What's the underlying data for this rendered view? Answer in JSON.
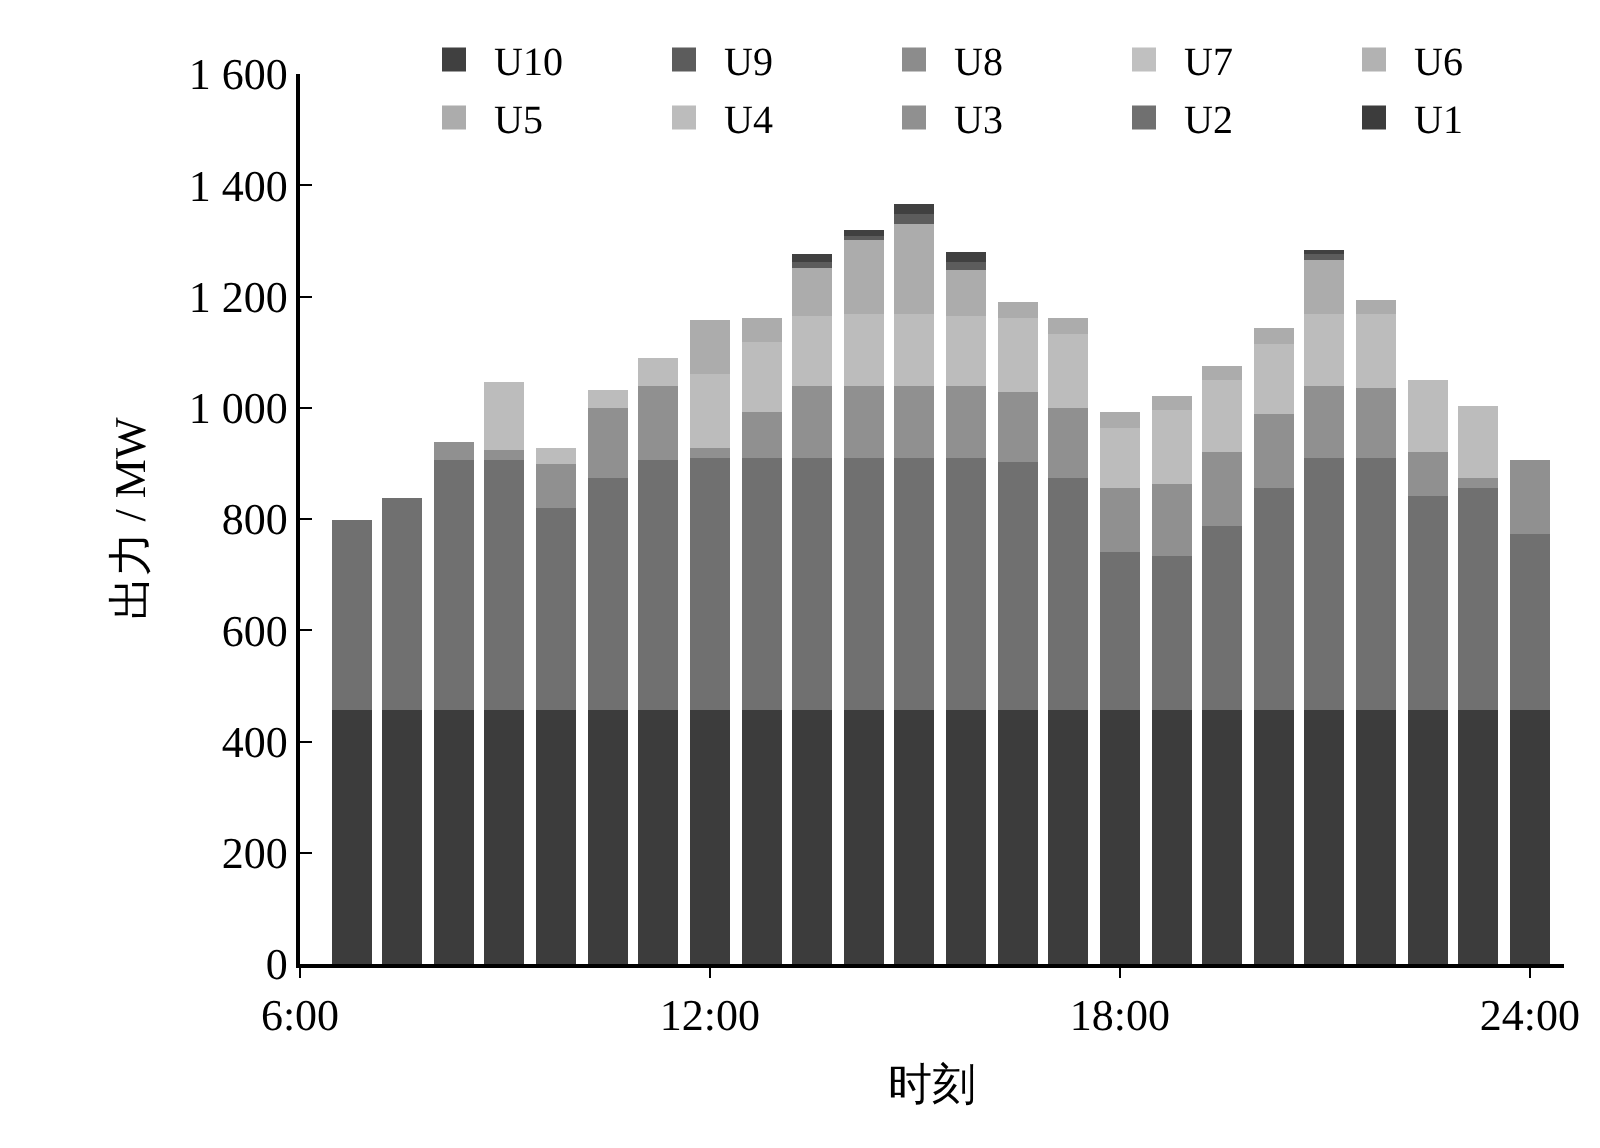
{
  "chart_data": {
    "type": "bar",
    "stacked": true,
    "xlabel": "时刻",
    "ylabel": "出力 / MW",
    "x": [
      6.75,
      7.5,
      8.25,
      9,
      9.75,
      10.5,
      11.25,
      12,
      12.75,
      13.5,
      14.25,
      15,
      15.75,
      16.5,
      17.25,
      18,
      18.75,
      19.5,
      20.25,
      21,
      21.75,
      22.5,
      23.25,
      24
    ],
    "xlim": [
      6,
      24.5
    ],
    "xticks": [
      {
        "value": 6,
        "label": "6:00"
      },
      {
        "value": 12,
        "label": "12:00"
      },
      {
        "value": 18,
        "label": "18:00"
      },
      {
        "value": 24,
        "label": "24:00"
      }
    ],
    "ylim": [
      0,
      1600
    ],
    "yticks": [
      0,
      200,
      400,
      600,
      800,
      {
        "value": 1000,
        "label": "1 000"
      },
      {
        "value": 1200,
        "label": "1 200"
      },
      {
        "value": 1400,
        "label": "1 400"
      },
      {
        "value": 1600,
        "label": "1 600"
      }
    ],
    "legend": "top right",
    "series": [
      {
        "name": "U1",
        "color": "#3c3c3c",
        "values": [
          455,
          455,
          455,
          455,
          455,
          455,
          455,
          455,
          455,
          455,
          455,
          455,
          455,
          455,
          455,
          455,
          455,
          455,
          455,
          455,
          455,
          455,
          455,
          455
        ]
      },
      {
        "name": "U2",
        "color": "#707070",
        "values": [
          345,
          381,
          452,
          452,
          364,
          420,
          452,
          453,
          454,
          454,
          454,
          455,
          454,
          446,
          417,
          287,
          279,
          334,
          402,
          454,
          454,
          388,
          402,
          319
        ]
      },
      {
        "name": "U3",
        "color": "#909090",
        "values": [
          0,
          0,
          31,
          17,
          79,
          126,
          131,
          20,
          82,
          129,
          129,
          128,
          129,
          129,
          129,
          115,
          129,
          132,
          130,
          129,
          127,
          78,
          15,
          133
        ]
      },
      {
        "name": "U4",
        "color": "#bcbcbc",
        "values": [
          0,
          0,
          0,
          124,
          29,
          32,
          51,
          132,
          127,
          127,
          129,
          129,
          127,
          133,
          131,
          105,
          132,
          129,
          128,
          129,
          132,
          129,
          132,
          0
        ]
      },
      {
        "name": "U5",
        "color": "#acacac",
        "values": [
          0,
          0,
          0,
          0,
          0,
          0,
          0,
          96,
          45,
          88,
          133,
          163,
          83,
          26,
          28,
          29,
          27,
          24,
          27,
          98,
          27,
          0,
          0,
          0
        ]
      },
      {
        "name": "U6",
        "color": "#b2b2b2",
        "values": [
          0,
          0,
          0,
          0,
          0,
          0,
          0,
          0,
          0,
          0,
          0,
          0,
          0,
          0,
          0,
          0,
          0,
          0,
          0,
          0,
          0,
          0,
          0,
          0
        ]
      },
      {
        "name": "U7",
        "color": "#c0c0c0",
        "values": [
          0,
          0,
          0,
          0,
          0,
          0,
          0,
          0,
          0,
          0,
          0,
          0,
          0,
          0,
          0,
          0,
          0,
          0,
          0,
          0,
          0,
          0,
          0,
          0
        ]
      },
      {
        "name": "U8",
        "color": "#8c8c8c",
        "values": [
          0,
          0,
          0,
          0,
          0,
          0,
          0,
          0,
          0,
          0,
          0,
          0,
          0,
          0,
          0,
          0,
          0,
          0,
          0,
          0,
          0,
          0,
          0,
          0
        ]
      },
      {
        "name": "U9",
        "color": "#5c5c5c",
        "values": [
          0,
          0,
          0,
          0,
          0,
          0,
          0,
          0,
          0,
          10,
          10,
          17,
          15,
          0,
          0,
          0,
          0,
          0,
          0,
          10,
          0,
          0,
          0,
          0
        ]
      },
      {
        "name": "U10",
        "color": "#404040",
        "values": [
          0,
          0,
          0,
          0,
          0,
          0,
          0,
          0,
          0,
          14,
          8,
          18,
          17,
          0,
          0,
          0,
          0,
          0,
          0,
          10,
          0,
          0,
          0,
          0
        ]
      }
    ]
  }
}
